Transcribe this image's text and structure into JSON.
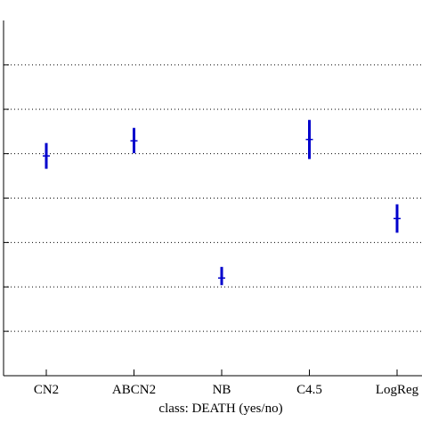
{
  "chart_data": {
    "type": "scatter",
    "title": "",
    "xlabel": "class: DEATH (yes/no)",
    "ylabel": "",
    "categories": [
      "CN2",
      "ABCN2",
      "NB",
      "C4.5",
      "LogReg"
    ],
    "ylim": [
      0,
      8
    ],
    "grid_y": [
      1,
      2,
      3,
      4,
      5,
      6,
      7
    ],
    "grid": true,
    "series": [
      {
        "points": [
          {
            "category": "CN2",
            "mean": 4.95,
            "low": 4.66,
            "high": 5.24
          },
          {
            "category": "ABCN2",
            "mean": 5.29,
            "low": 5.01,
            "high": 5.58
          },
          {
            "category": "NB",
            "mean": 2.2,
            "low": 2.04,
            "high": 2.45
          },
          {
            "category": "C4.5",
            "mean": 5.32,
            "low": 4.88,
            "high": 5.76
          },
          {
            "category": "LogReg",
            "mean": 3.54,
            "low": 3.22,
            "high": 3.86
          }
        ]
      }
    ],
    "colors": {
      "marker": "#0000cc",
      "axis": "#000000",
      "grid": "#000000"
    }
  }
}
